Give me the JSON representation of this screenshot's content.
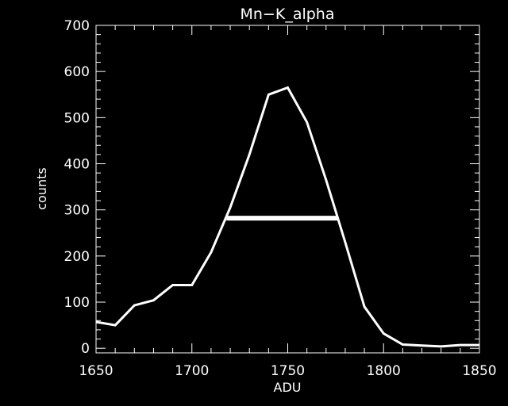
{
  "chart_data": {
    "type": "line",
    "title": "Mn−K_alpha",
    "xlabel": "ADU",
    "ylabel": "counts",
    "xlim": [
      1650,
      1850
    ],
    "ylim": [
      -10,
      700
    ],
    "xticks": [
      1650,
      1700,
      1750,
      1800,
      1850
    ],
    "yticks": [
      0,
      100,
      200,
      300,
      400,
      500,
      600,
      700
    ],
    "grid": false,
    "series": [
      {
        "x": [
          1650,
          1660,
          1670,
          1680,
          1690,
          1700,
          1710,
          1720,
          1730,
          1740,
          1750,
          1760,
          1770,
          1780,
          1790,
          1800,
          1810,
          1820,
          1830,
          1840,
          1850
        ],
        "y": [
          57,
          50,
          93,
          104,
          137,
          137,
          208,
          305,
          420,
          550,
          565,
          490,
          365,
          230,
          90,
          32,
          8,
          6,
          4,
          7,
          7
        ]
      }
    ],
    "annotations": [
      {
        "type": "fwhm-bar",
        "x_start": 1718,
        "x_end": 1776,
        "y": 282
      }
    ],
    "colors": {
      "background": "#000000",
      "foreground": "#ffffff"
    }
  }
}
